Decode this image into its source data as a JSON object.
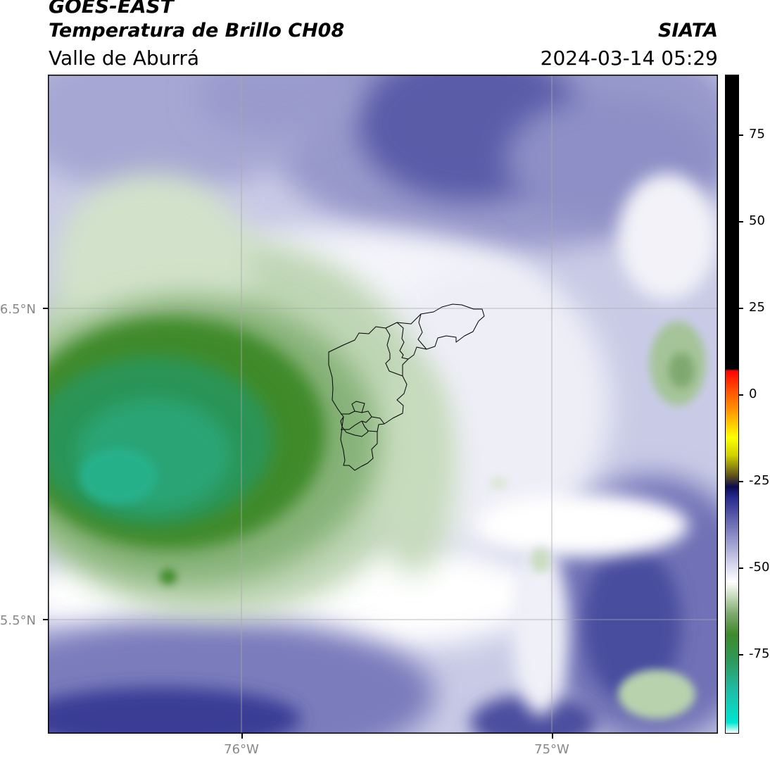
{
  "header": {
    "satellite": "GOES-EAST",
    "product": "Temperatura de Brillo CH08",
    "region": "Valle de Aburrá",
    "organization": "SIATA",
    "datetime": "2024-03-14 05:29"
  },
  "axes": {
    "lat_labels": [
      "6.5°N",
      "5.5°N"
    ],
    "lon_labels": [
      "76°W",
      "75°W"
    ]
  },
  "colorbar": {
    "ticks": [
      "75",
      "50",
      "25",
      "0",
      "-25",
      "-50",
      "-75"
    ],
    "min": -95,
    "max": 92,
    "stops": [
      {
        "v": -95,
        "c": "#ffffff"
      },
      {
        "v": -92,
        "c": "#00e5d2"
      },
      {
        "v": -82,
        "c": "#22b8a0"
      },
      {
        "v": -74,
        "c": "#2e9957"
      },
      {
        "v": -67,
        "c": "#3f8a2a"
      },
      {
        "v": -61,
        "c": "#80aa70"
      },
      {
        "v": -56,
        "c": "#c9dcc0"
      },
      {
        "v": -52,
        "c": "#ffffff"
      },
      {
        "v": -47,
        "c": "#d4d5ec"
      },
      {
        "v": -41,
        "c": "#9e9fcf"
      },
      {
        "v": -34,
        "c": "#5f61ad"
      },
      {
        "v": -28,
        "c": "#262a8c"
      },
      {
        "v": -25,
        "c": "#0b0b54"
      },
      {
        "v": -22,
        "c": "#5c4f1c"
      },
      {
        "v": -16,
        "c": "#d2d200"
      },
      {
        "v": -11,
        "c": "#ffff00"
      },
      {
        "v": -4,
        "c": "#ffa000"
      },
      {
        "v": 4,
        "c": "#ff3c00"
      },
      {
        "v": 8,
        "c": "#ff0000"
      },
      {
        "v": 8.5,
        "c": "#000000"
      },
      {
        "v": 92,
        "c": "#000000"
      }
    ]
  },
  "colors": {
    "cloud_top": "#5a5ba6",
    "clear_sky_humid": "#3f8a2a",
    "dry_upper": "#2aa474",
    "transition": "#ffffff",
    "boundary": "#000000",
    "gridline": "#b0b0b0"
  }
}
